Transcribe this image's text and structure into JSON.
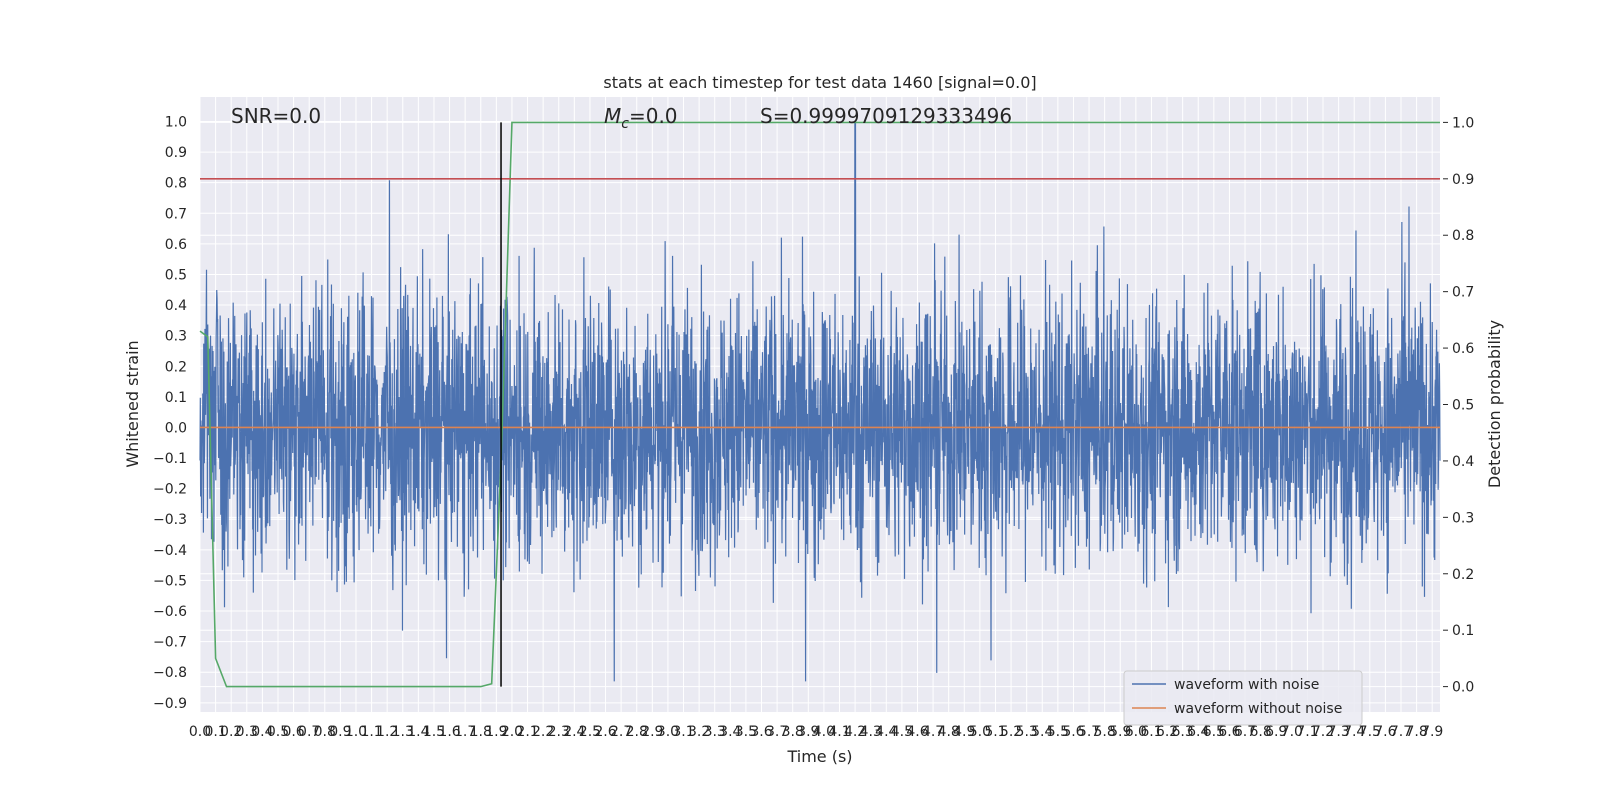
{
  "chart_data": {
    "type": "line",
    "title": "stats at each timestep for test data 1460 [signal=0.0]",
    "xlabel": "Time (s)",
    "ylabel": "Whitened strain",
    "y2label": "Detection probability",
    "xlim": [
      0.0,
      7.95
    ],
    "ylim": [
      -0.93,
      1.08
    ],
    "y2lim": [
      -0.045,
      1.045
    ],
    "grid": true,
    "x_ticks": [
      "0.0",
      "0.1",
      "0.2",
      "0.3",
      "0.4",
      "0.5",
      "0.6",
      "0.7",
      "0.8",
      "0.9",
      "1.0",
      "1.1",
      "1.2",
      "1.3",
      "1.4",
      "1.5",
      "1.6",
      "1.7",
      "1.8",
      "1.9",
      "2.0",
      "2.1",
      "2.2",
      "2.3",
      "2.4",
      "2.5",
      "2.6",
      "2.7",
      "2.8",
      "2.9",
      "3.0",
      "3.1",
      "3.2",
      "3.3",
      "3.4",
      "3.5",
      "3.6",
      "3.7",
      "3.8",
      "3.9",
      "4.0",
      "4.1",
      "4.2",
      "4.3",
      "4.4",
      "4.5",
      "4.6",
      "4.7",
      "4.8",
      "4.9",
      "5.0",
      "5.1",
      "5.2",
      "5.3",
      "5.4",
      "5.5",
      "5.6",
      "5.7",
      "5.8",
      "5.9",
      "6.0",
      "6.1",
      "6.2",
      "6.3",
      "6.4",
      "6.5",
      "6.6",
      "6.7",
      "6.8",
      "6.9",
      "7.0",
      "7.1",
      "7.2",
      "7.3",
      "7.4",
      "7.5",
      "7.6",
      "7.7",
      "7.8",
      "7.9"
    ],
    "y_ticks": [
      "−0.9",
      "−0.8",
      "−0.7",
      "−0.6",
      "−0.5",
      "−0.4",
      "−0.3",
      "−0.2",
      "−0.1",
      "0.0",
      "0.1",
      "0.2",
      "0.3",
      "0.4",
      "0.5",
      "0.6",
      "0.7",
      "0.8",
      "0.9",
      "1.0"
    ],
    "y2_ticks": [
      "0.0",
      "0.1",
      "0.2",
      "0.3",
      "0.4",
      "0.5",
      "0.6",
      "0.7",
      "0.8",
      "0.9",
      "1.0"
    ],
    "annotations": {
      "snr": "SNR=0.0",
      "mc_symbol": "M",
      "mc_sub": "c",
      "mc_value": "=0.0",
      "s": "S=0.9999709129333496"
    },
    "legend": {
      "position": "lower right",
      "entries": [
        "waveform with noise",
        "waveform without noise"
      ]
    },
    "series": [
      {
        "name": "waveform with noise",
        "axis": "left",
        "color": "#4c72b0",
        "kind": "noise",
        "approx_envelope": {
          "typical_amplitude": 0.25,
          "max": 1.0,
          "min": -0.83,
          "peak_time": 4.2
        }
      },
      {
        "name": "waveform without noise",
        "axis": "left",
        "color": "#dd8452",
        "x": [
          0.0,
          7.95
        ],
        "y": [
          0.0,
          0.0
        ]
      },
      {
        "axis": "right",
        "color": "#55a868",
        "x": [
          0.0,
          0.05,
          0.1,
          0.17,
          1.8,
          1.87,
          1.93,
          2.0,
          7.95
        ],
        "y": [
          0.63,
          0.62,
          0.05,
          0.0,
          0.0,
          0.005,
          0.4,
          1.0,
          1.0
        ]
      },
      {
        "axis": "right",
        "color": "#c44e52",
        "x": [
          0.0,
          7.95
        ],
        "y": [
          0.9,
          0.9
        ]
      },
      {
        "color": "#000000",
        "kind": "vline",
        "x": 1.93,
        "y_range_right": [
          0.0,
          1.0
        ]
      }
    ]
  }
}
